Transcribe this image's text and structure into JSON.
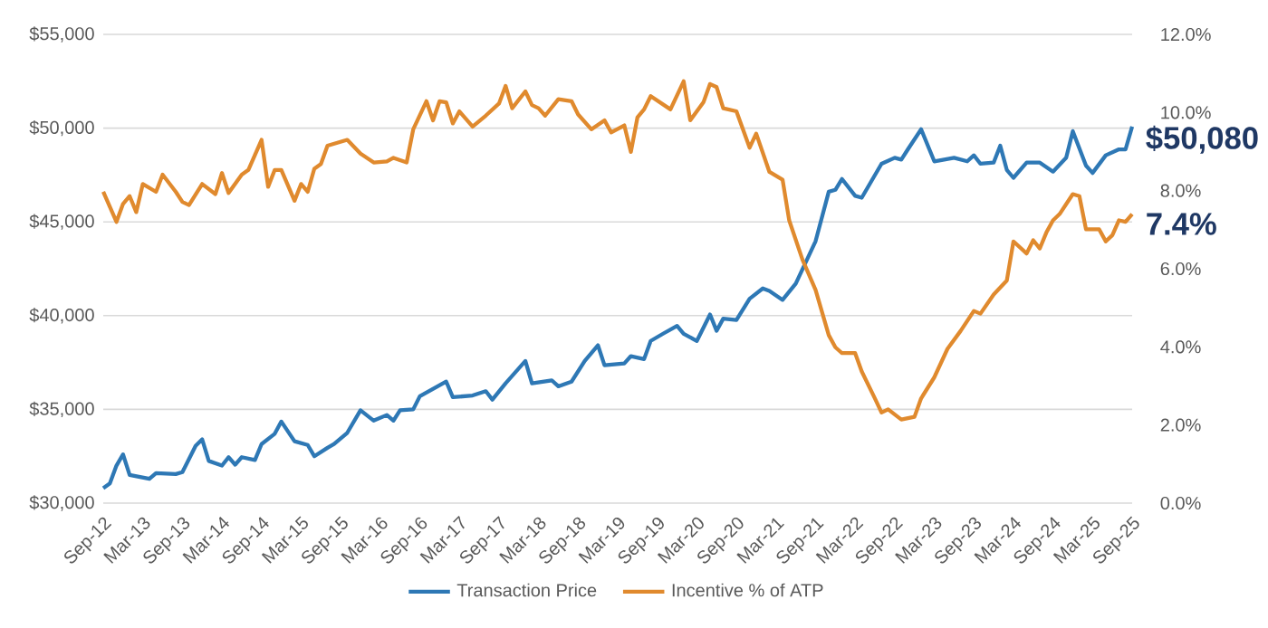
{
  "chart_data": {
    "type": "line",
    "xlim": [
      "2012-09",
      "2025-09"
    ],
    "xticks": [
      {
        "value": "2012-09",
        "label": "Sep-12"
      },
      {
        "value": "2013-03",
        "label": "Mar-13"
      },
      {
        "value": "2013-09",
        "label": "Sep-13"
      },
      {
        "value": "2014-03",
        "label": "Mar-14"
      },
      {
        "value": "2014-09",
        "label": "Sep-14"
      },
      {
        "value": "2015-03",
        "label": "Mar-15"
      },
      {
        "value": "2015-09",
        "label": "Sep-15"
      },
      {
        "value": "2016-03",
        "label": "Mar-16"
      },
      {
        "value": "2016-09",
        "label": "Sep-16"
      },
      {
        "value": "2017-03",
        "label": "Mar-17"
      },
      {
        "value": "2017-09",
        "label": "Sep-17"
      },
      {
        "value": "2018-03",
        "label": "Mar-18"
      },
      {
        "value": "2018-09",
        "label": "Sep-18"
      },
      {
        "value": "2019-03",
        "label": "Mar-19"
      },
      {
        "value": "2019-09",
        "label": "Sep-19"
      },
      {
        "value": "2020-03",
        "label": "Mar-20"
      },
      {
        "value": "2020-09",
        "label": "Sep-20"
      },
      {
        "value": "2021-03",
        "label": "Mar-21"
      },
      {
        "value": "2021-09",
        "label": "Sep-21"
      },
      {
        "value": "2022-03",
        "label": "Mar-22"
      },
      {
        "value": "2022-09",
        "label": "Sep-22"
      },
      {
        "value": "2023-03",
        "label": "Mar-23"
      },
      {
        "value": "2023-09",
        "label": "Sep-23"
      },
      {
        "value": "2024-03",
        "label": "Mar-24"
      },
      {
        "value": "2024-09",
        "label": "Sep-24"
      },
      {
        "value": "2025-03",
        "label": "Mar-25"
      },
      {
        "value": "2025-09",
        "label": "Sep-25"
      }
    ],
    "ylim": [
      30000,
      55000
    ],
    "yticks": [
      {
        "value": 30000,
        "label": "$30,000"
      },
      {
        "value": 35000,
        "label": "$35,000"
      },
      {
        "value": 40000,
        "label": "$40,000"
      },
      {
        "value": 45000,
        "label": "$45,000"
      },
      {
        "value": 50000,
        "label": "$50,000"
      },
      {
        "value": 55000,
        "label": "$55,000"
      }
    ],
    "y2lim": [
      0,
      12
    ],
    "y2ticks": [
      {
        "value": 0,
        "label": "0.0%"
      },
      {
        "value": 2,
        "label": "2.0%"
      },
      {
        "value": 4,
        "label": "4.0%"
      },
      {
        "value": 6,
        "label": "6.0%"
      },
      {
        "value": 8,
        "label": "8.0%"
      },
      {
        "value": 10,
        "label": "10.0%"
      },
      {
        "value": 12,
        "label": "12.0%"
      }
    ],
    "grid": "y",
    "legend": "bottom",
    "annotations": [
      "$50,080",
      "7.4%"
    ],
    "series": [
      {
        "name": "Transaction Price",
        "color": "#2e78b5",
        "axis": "y",
        "x": [
          "2012-09",
          "2012-10",
          "2012-11",
          "2012-12",
          "2013-01",
          "2013-04",
          "2013-05",
          "2013-08",
          "2013-09",
          "2013-11",
          "2013-12",
          "2014-01",
          "2014-03",
          "2014-04",
          "2014-05",
          "2014-06",
          "2014-08",
          "2014-09",
          "2014-11",
          "2014-12",
          "2015-02",
          "2015-04",
          "2015-05",
          "2015-07",
          "2015-08",
          "2015-10",
          "2015-12",
          "2016-02",
          "2016-04",
          "2016-05",
          "2016-06",
          "2016-08",
          "2016-09",
          "2017-01",
          "2017-02",
          "2017-05",
          "2017-07",
          "2017-08",
          "2017-10",
          "2018-01",
          "2018-02",
          "2018-05",
          "2018-06",
          "2018-08",
          "2018-10",
          "2018-12",
          "2019-01",
          "2019-04",
          "2019-05",
          "2019-07",
          "2019-08",
          "2019-10",
          "2019-12",
          "2020-01",
          "2020-03",
          "2020-05",
          "2020-06",
          "2020-07",
          "2020-09",
          "2020-11",
          "2021-01",
          "2021-02",
          "2021-04",
          "2021-06",
          "2021-09",
          "2021-11",
          "2021-12",
          "2022-01",
          "2022-03",
          "2022-04",
          "2022-07",
          "2022-09",
          "2022-10",
          "2022-11",
          "2023-01",
          "2023-03",
          "2023-06",
          "2023-08",
          "2023-09",
          "2023-10",
          "2023-12",
          "2024-01",
          "2024-02",
          "2024-03",
          "2024-05",
          "2024-07",
          "2024-09",
          "2024-11",
          "2024-12",
          "2025-02",
          "2025-03",
          "2025-05",
          "2025-07",
          "2025-08",
          "2025-09"
        ],
        "values": [
          30800,
          31050,
          32000,
          32600,
          31500,
          31300,
          31600,
          31550,
          31650,
          33050,
          33400,
          32250,
          32000,
          32450,
          32050,
          32450,
          32300,
          33150,
          33700,
          34350,
          33300,
          33100,
          32500,
          32950,
          33150,
          33750,
          34950,
          34400,
          34700,
          34400,
          34950,
          35000,
          35700,
          36480,
          35650,
          35740,
          35970,
          35520,
          36390,
          37580,
          36390,
          36550,
          36230,
          36480,
          37580,
          38420,
          37350,
          37450,
          37840,
          37680,
          38650,
          39060,
          39450,
          39030,
          38650,
          40060,
          39190,
          39840,
          39770,
          40900,
          41450,
          41320,
          40840,
          41710,
          43970,
          46610,
          46710,
          47290,
          46390,
          46290,
          48100,
          48420,
          48320,
          48870,
          49940,
          48230,
          48420,
          48230,
          48550,
          48100,
          48160,
          49060,
          47770,
          47350,
          48160,
          48160,
          47680,
          48420,
          49840,
          48000,
          47610,
          48550,
          48870,
          48870,
          50080
        ]
      },
      {
        "name": "Incentive % of ATP",
        "color": "#e08a2e",
        "axis": "y2",
        "x": [
          "2012-09",
          "2012-11",
          "2012-12",
          "2013-01",
          "2013-02",
          "2013-03",
          "2013-05",
          "2013-06",
          "2013-08",
          "2013-09",
          "2013-10",
          "2013-12",
          "2014-02",
          "2014-03",
          "2014-04",
          "2014-06",
          "2014-07",
          "2014-09",
          "2014-10",
          "2014-11",
          "2014-12",
          "2015-02",
          "2015-03",
          "2015-04",
          "2015-05",
          "2015-06",
          "2015-07",
          "2015-10",
          "2015-12",
          "2016-02",
          "2016-04",
          "2016-05",
          "2016-07",
          "2016-08",
          "2016-10",
          "2016-11",
          "2016-12",
          "2017-01",
          "2017-02",
          "2017-03",
          "2017-05",
          "2017-07",
          "2017-09",
          "2017-10",
          "2017-11",
          "2018-01",
          "2018-02",
          "2018-03",
          "2018-04",
          "2018-06",
          "2018-08",
          "2018-09",
          "2018-11",
          "2019-01",
          "2019-02",
          "2019-04",
          "2019-05",
          "2019-06",
          "2019-07",
          "2019-08",
          "2019-11",
          "2020-01",
          "2020-02",
          "2020-04",
          "2020-05",
          "2020-06",
          "2020-07",
          "2020-09",
          "2020-11",
          "2020-12",
          "2021-02",
          "2021-04",
          "2021-05",
          "2021-07",
          "2021-09",
          "2021-11",
          "2021-12",
          "2022-01",
          "2022-03",
          "2022-04",
          "2022-06",
          "2022-07",
          "2022-08",
          "2022-10",
          "2022-12",
          "2023-01",
          "2023-03",
          "2023-05",
          "2023-07",
          "2023-09",
          "2023-10",
          "2023-12",
          "2024-02",
          "2024-03",
          "2024-05",
          "2024-06",
          "2024-07",
          "2024-08",
          "2024-09",
          "2024-10",
          "2024-12",
          "2025-01",
          "2025-02",
          "2025-04",
          "2025-05",
          "2025-06",
          "2025-07",
          "2025-08",
          "2025-09"
        ],
        "values": [
          7.97,
          7.2,
          7.66,
          7.86,
          7.45,
          8.17,
          7.97,
          8.41,
          7.97,
          7.71,
          7.63,
          8.17,
          7.91,
          8.45,
          7.94,
          8.41,
          8.53,
          9.3,
          8.1,
          8.53,
          8.53,
          7.74,
          8.17,
          7.97,
          8.56,
          8.68,
          9.15,
          9.3,
          8.95,
          8.72,
          8.75,
          8.84,
          8.72,
          9.57,
          10.29,
          9.8,
          10.29,
          10.26,
          9.72,
          10.03,
          9.64,
          9.92,
          10.23,
          10.68,
          10.11,
          10.54,
          10.19,
          10.11,
          9.92,
          10.34,
          10.29,
          9.95,
          9.57,
          9.8,
          9.49,
          9.67,
          8.99,
          9.88,
          10.08,
          10.42,
          10.08,
          10.8,
          9.8,
          10.26,
          10.73,
          10.65,
          10.11,
          10.03,
          9.1,
          9.46,
          8.48,
          8.28,
          7.24,
          6.24,
          5.46,
          4.3,
          3.99,
          3.84,
          3.84,
          3.37,
          2.68,
          2.32,
          2.4,
          2.14,
          2.21,
          2.68,
          3.22,
          3.95,
          4.41,
          4.92,
          4.85,
          5.34,
          5.7,
          6.7,
          6.39,
          6.73,
          6.52,
          6.93,
          7.24,
          7.4,
          7.91,
          7.86,
          7.01,
          7.01,
          6.7,
          6.86,
          7.24,
          7.2,
          7.4
        ]
      }
    ]
  }
}
